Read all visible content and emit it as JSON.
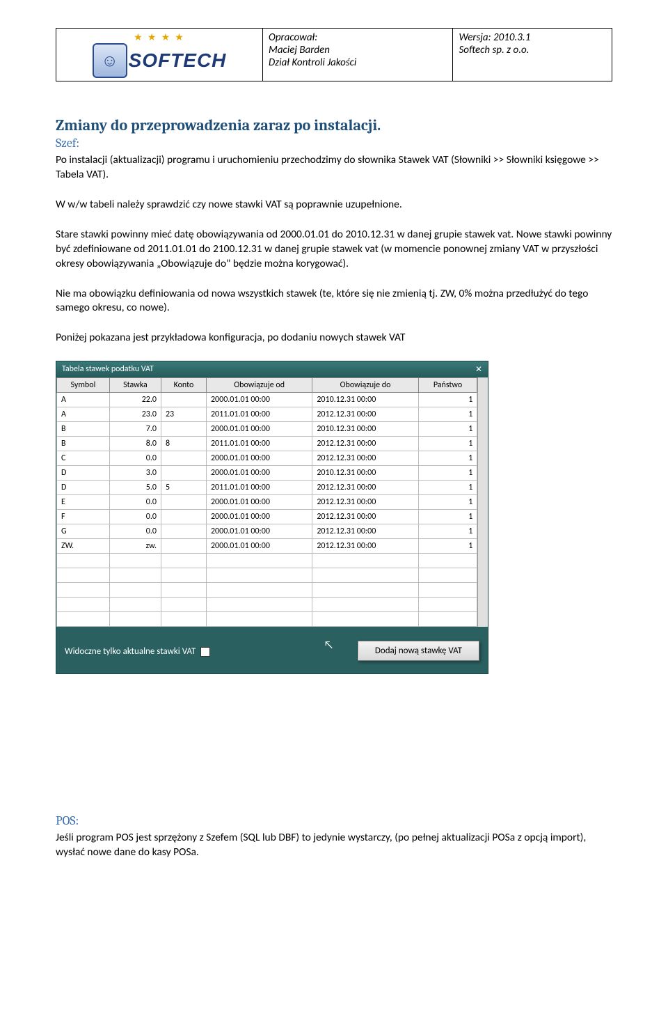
{
  "header": {
    "left": {
      "stars": "★ ★ ★ ★",
      "logo_letter": "☺",
      "logo_text": "SOFTECH"
    },
    "mid": {
      "line1": "Opracował:",
      "line2": "Maciej Barden",
      "line3": "Dział Kontroli Jakości"
    },
    "right": {
      "line1": "Wersja: 2010.3.1",
      "line2": "Softech sp. z o.o."
    }
  },
  "section1": {
    "title": "Zmiany do przeprowadzenia zaraz po instalacji.",
    "sub": "Szef:",
    "p1": "Po instalacji (aktualizacji) programu i uruchomieniu przechodzimy do słownika Stawek VAT (Słowniki >> Słowniki księgowe >> Tabela VAT).",
    "p2": "W w/w tabeli należy sprawdzić czy  nowe stawki VAT są poprawnie uzupełnione.",
    "p3": "Stare stawki powinny mieć datę obowiązywania od 2000.01.01 do 2010.12.31 w danej grupie stawek vat. Nowe stawki powinny być zdefiniowane od 2011.01.01 do 2100.12.31 w danej grupie stawek vat (w momencie ponownej zmiany VAT w przyszłości okresy obowiązywania „Obowiązuje do\" będzie można korygować).",
    "p4": "Nie ma obowiązku definiowania od nowa wszystkich stawek (te, które się nie zmienią tj. ZW, 0% można przedłużyć do tego samego okresu, co nowe).",
    "p5": "Poniżej pokazana jest przykładowa konfiguracja, po dodaniu nowych stawek VAT"
  },
  "vatWindow": {
    "title": "Tabela stawek podatku VAT",
    "columns": [
      "Symbol",
      "Stawka",
      "Konto",
      "Obowiązuje od",
      "Obowiązuje do",
      "Państwo"
    ],
    "rows": [
      [
        "A",
        "22.0",
        "",
        "2000.01.01 00:00",
        "2010.12.31 00:00",
        "1"
      ],
      [
        "A",
        "23.0",
        "23",
        "2011.01.01 00:00",
        "2012.12.31 00:00",
        "1"
      ],
      [
        "B",
        "7.0",
        "",
        "2000.01.01 00:00",
        "2010.12.31 00:00",
        "1"
      ],
      [
        "B",
        "8.0",
        "8",
        "2011.01.01 00:00",
        "2012.12.31 00:00",
        "1"
      ],
      [
        "C",
        "0.0",
        "",
        "2000.01.01 00:00",
        "2012.12.31 00:00",
        "1"
      ],
      [
        "D",
        "3.0",
        "",
        "2000.01.01 00:00",
        "2010.12.31 00:00",
        "1"
      ],
      [
        "D",
        "5.0",
        "5",
        "2011.01.01 00:00",
        "2012.12.31 00:00",
        "1"
      ],
      [
        "E",
        "0.0",
        "",
        "2000.01.01 00:00",
        "2012.12.31 00:00",
        "1"
      ],
      [
        "F",
        "0.0",
        "",
        "2000.01.01 00:00",
        "2012.12.31 00:00",
        "1"
      ],
      [
        "G",
        "0.0",
        "",
        "2000.01.01 00:00",
        "2012.12.31 00:00",
        "1"
      ],
      [
        "ZW.",
        "zw.",
        "",
        "2000.01.01 00:00",
        "2012.12.31 00:00",
        "1"
      ]
    ],
    "emptyRows": 5,
    "footer_label": "Widoczne tylko aktualne stawki VAT",
    "button": "Dodaj nową stawkę VAT",
    "colors": {
      "window_bg": "#2a6060",
      "titlebar_from": "#3a7a7a",
      "titlebar_to": "#255a5a",
      "header_bg": "#e8e8e8",
      "cell_border": "#bbbbbb"
    }
  },
  "section2": {
    "sub": "POS:",
    "p1": "Jeśli program POS jest sprzężony z Szefem (SQL lub DBF) to jedynie wystarczy, (po pełnej aktualizacji POSa z opcją import), wysłać nowe dane do kasy POSa."
  }
}
